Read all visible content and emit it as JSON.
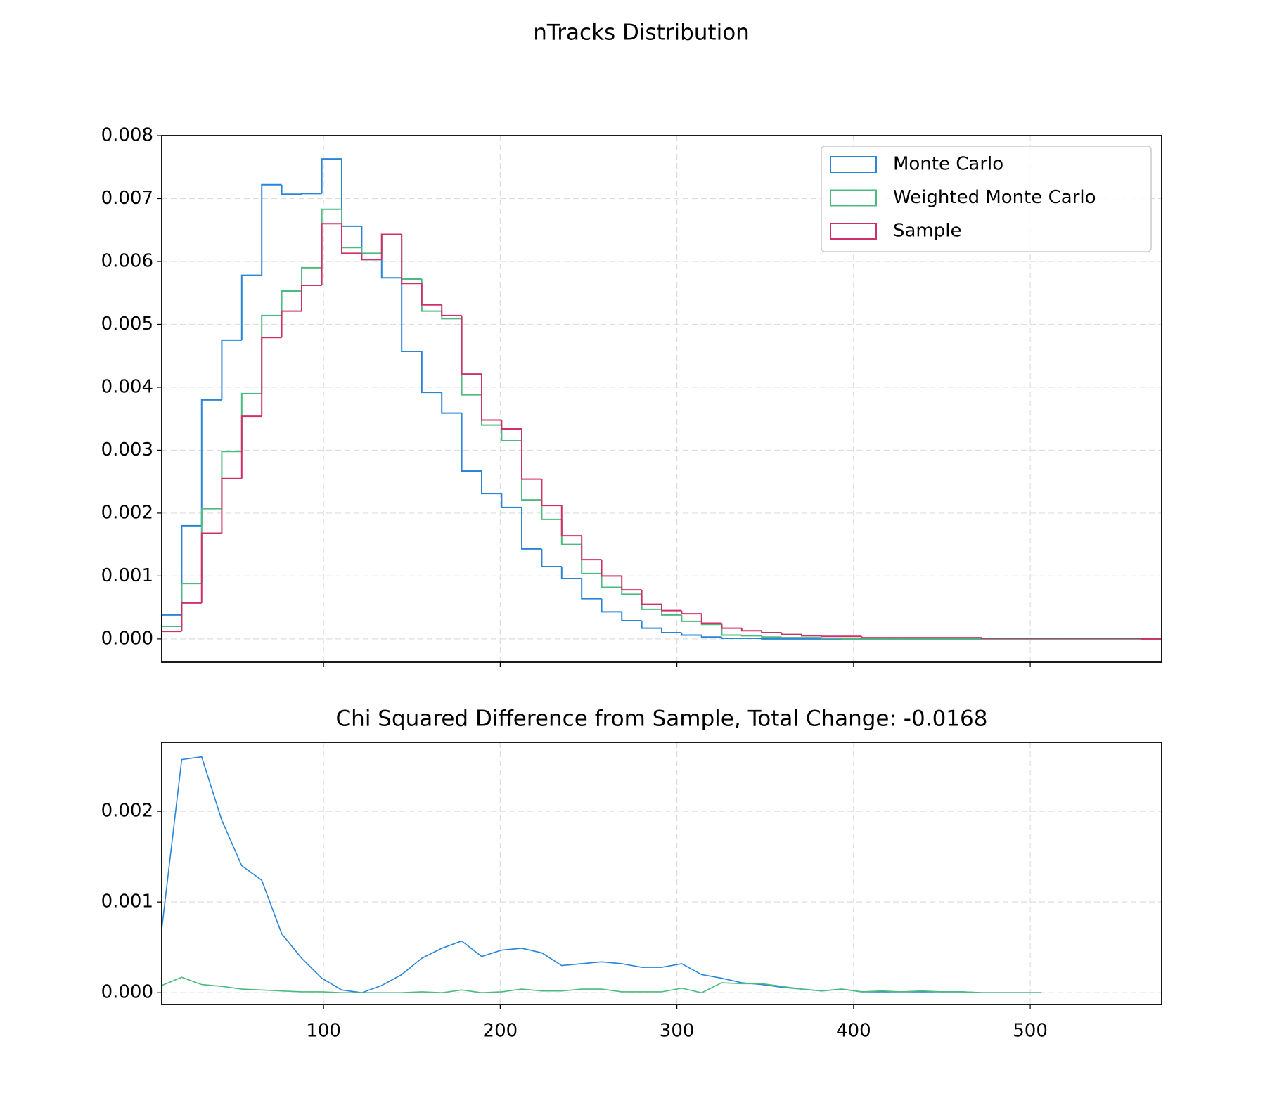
{
  "title": "nTracks Distribution",
  "chart_data": [
    {
      "type": "histogram",
      "bins": [
        8.4,
        19.7,
        31.0,
        42.4,
        53.7,
        65.0,
        76.3,
        87.6,
        99.0,
        110.3,
        121.6,
        132.9,
        144.2,
        155.6,
        166.9,
        178.2,
        189.5,
        200.8,
        212.2,
        223.5,
        234.8,
        246.1,
        257.4,
        268.8,
        280.1,
        291.4,
        302.7,
        314.0,
        325.4,
        336.7,
        348.0,
        359.3,
        370.6,
        382.0,
        393.3,
        404.6,
        415.9,
        427.2,
        438.6,
        449.9,
        461.2,
        472.5,
        483.8,
        495.2,
        506.5,
        517.8,
        529.1,
        540.4,
        551.8,
        563.1,
        574.4
      ],
      "series": [
        {
          "name": "Monte Carlo",
          "color": "#2a85d8",
          "values": [
            0.00038,
            0.0018,
            0.0038,
            0.00475,
            0.00578,
            0.00722,
            0.00707,
            0.00708,
            0.00763,
            0.00656,
            0.00603,
            0.00574,
            0.00457,
            0.00392,
            0.00359,
            0.00267,
            0.00231,
            0.00209,
            0.00143,
            0.00115,
            0.00096,
            0.00064,
            0.00043,
            0.00029,
            0.00017,
            0.0001,
            6e-05,
            3e-05,
            1e-05,
            1e-05,
            0,
            0,
            0,
            0,
            0,
            0,
            0,
            0,
            0,
            0,
            0,
            0,
            0,
            0,
            0,
            0,
            0,
            0,
            0,
            0
          ]
        },
        {
          "name": "Weighted Monte Carlo",
          "color": "#4cbb7f",
          "values": [
            0.0002,
            0.00088,
            0.00207,
            0.00298,
            0.0039,
            0.00514,
            0.00553,
            0.0059,
            0.00683,
            0.00622,
            0.00613,
            0.00643,
            0.00572,
            0.00521,
            0.00509,
            0.00388,
            0.0034,
            0.00315,
            0.00221,
            0.0019,
            0.0015,
            0.00104,
            0.00082,
            0.00071,
            0.00047,
            0.00038,
            0.00028,
            0.00023,
            6e-05,
            5e-05,
            3e-05,
            2e-05,
            2e-05,
            1e-05,
            0,
            0,
            0,
            0,
            0,
            0,
            0,
            0,
            0,
            0,
            0,
            0,
            0,
            0,
            0,
            0
          ]
        },
        {
          "name": "Sample",
          "color": "#d0306a",
          "values": [
            0.00012,
            0.00057,
            0.00168,
            0.00255,
            0.00354,
            0.00479,
            0.00521,
            0.00562,
            0.0066,
            0.00613,
            0.00603,
            0.00643,
            0.00565,
            0.00531,
            0.00514,
            0.00421,
            0.00348,
            0.00334,
            0.00254,
            0.00212,
            0.00164,
            0.00126,
            0.001,
            0.00078,
            0.00055,
            0.00045,
            0.0004,
            0.00025,
            0.00017,
            0.00013,
            0.0001,
            7e-05,
            5e-05,
            4e-05,
            4e-05,
            2e-05,
            2e-05,
            2e-05,
            2e-05,
            2e-05,
            2e-05,
            1e-05,
            1e-05,
            1e-05,
            1e-05,
            1e-05,
            1e-05,
            1e-05,
            1e-05,
            0
          ]
        }
      ],
      "xlim": [
        8.4,
        574.4
      ],
      "xticks": [
        100,
        200,
        300,
        400,
        500
      ],
      "ylim": [
        -0.00037,
        0.008
      ],
      "yticks": [
        {
          "value": 0,
          "label": "0.000"
        },
        {
          "value": 0.001,
          "label": "0.001"
        },
        {
          "value": 0.002,
          "label": "0.002"
        },
        {
          "value": 0.003,
          "label": "0.003"
        },
        {
          "value": 0.004,
          "label": "0.004"
        },
        {
          "value": 0.005,
          "label": "0.005"
        },
        {
          "value": 0.006,
          "label": "0.006"
        },
        {
          "value": 0.007,
          "label": "0.007"
        },
        {
          "value": 0.008,
          "label": "0.008"
        }
      ],
      "grid": true,
      "legend": "upper right"
    },
    {
      "type": "line",
      "title": "Chi Squared Difference from Sample, Total Change: -0.0168",
      "x": [
        8.4,
        19.7,
        31.0,
        42.4,
        53.7,
        65.0,
        76.3,
        87.6,
        99.0,
        110.3,
        121.6,
        132.9,
        144.2,
        155.6,
        166.9,
        178.2,
        189.5,
        200.8,
        212.2,
        223.5,
        234.8,
        246.1,
        257.4,
        268.8,
        280.1,
        291.4,
        302.7,
        314.0,
        325.4,
        336.7,
        348.0,
        359.3,
        370.6,
        382.0,
        393.3,
        404.6,
        415.9,
        427.2,
        438.6,
        449.9,
        461.2,
        472.5,
        483.8,
        495.2,
        506.5
      ],
      "series": [
        {
          "color": "#2a85d8",
          "values": [
            0.0007,
            0.00257,
            0.0026,
            0.0019,
            0.0014,
            0.00124,
            0.00065,
            0.00038,
            0.00016,
            3e-05,
            0,
            8e-05,
            0.0002,
            0.00038,
            0.00049,
            0.00057,
            0.0004,
            0.00047,
            0.00049,
            0.00044,
            0.0003,
            0.00032,
            0.00034,
            0.00032,
            0.00028,
            0.00028,
            0.00032,
            0.0002,
            0.00016,
            0.00011,
            9e-05,
            6e-05,
            4e-05,
            2e-05,
            4e-05,
            1e-05,
            1e-05,
            1e-05,
            1e-05,
            1e-05,
            1e-05,
            0,
            0,
            0,
            0
          ]
        },
        {
          "color": "#4cbb7f",
          "values": [
            8e-05,
            0.00017,
            9e-05,
            7e-05,
            4e-05,
            3e-05,
            2e-05,
            1e-05,
            1e-05,
            0,
            0,
            0,
            0,
            1e-05,
            0,
            3e-05,
            0,
            1e-05,
            4e-05,
            2e-05,
            2e-05,
            4e-05,
            4e-05,
            1e-05,
            1e-05,
            1e-05,
            5e-05,
            0,
            0.00011,
            0.0001,
            0.0001,
            7e-05,
            4e-05,
            2e-05,
            4e-05,
            1e-05,
            2e-05,
            1e-05,
            2e-05,
            1e-05,
            1e-05,
            0,
            0,
            0,
            0
          ]
        }
      ],
      "xlim": [
        8.4,
        574.4
      ],
      "xticks": [
        100,
        200,
        300,
        400,
        500
      ],
      "ylim": [
        -0.00013,
        0.00276
      ],
      "yticks": [
        {
          "value": 0,
          "label": "0.000"
        },
        {
          "value": 0.001,
          "label": "0.001"
        },
        {
          "value": 0.002,
          "label": "0.002"
        }
      ],
      "grid": true
    }
  ]
}
